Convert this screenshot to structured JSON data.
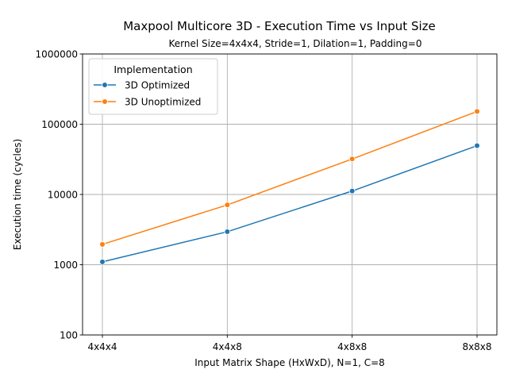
{
  "chart_data": {
    "type": "line",
    "title": "Maxpool Multicore 3D - Execution Time vs Input Size",
    "subtitle": "Kernel Size=4x4x4, Stride=1, Dilation=1, Padding=0",
    "xlabel": "Input Matrix Shape (HxWxD), N=1, C=8",
    "ylabel": "Execution time (cycles)",
    "categories": [
      "4x4x4",
      "4x4x8",
      "4x8x8",
      "8x8x8"
    ],
    "yscale": "log",
    "ylim": [
      100,
      1000000
    ],
    "yticks": [
      100,
      1000,
      10000,
      100000,
      1000000
    ],
    "ytick_labels": [
      "100",
      "1000",
      "10000",
      "100000",
      "1000000"
    ],
    "grid": true,
    "legend": {
      "title": "Implementation",
      "placement": "upper-left"
    },
    "series": [
      {
        "name": "3D Optimized",
        "color": "#1f77b4",
        "marker": "circle",
        "values": [
          1100,
          2950,
          11200,
          49500
        ]
      },
      {
        "name": "3D Unoptimized",
        "color": "#ff7f0e",
        "marker": "circle",
        "values": [
          1950,
          7100,
          32000,
          152000
        ]
      }
    ]
  }
}
